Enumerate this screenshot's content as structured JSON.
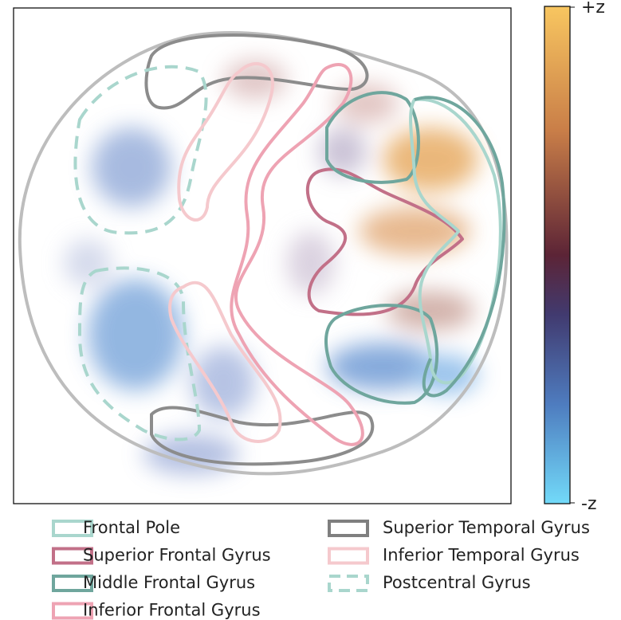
{
  "colorbar": {
    "top_label": "+z",
    "bottom_label": "-z"
  },
  "legend": [
    {
      "label": "Frontal Pole",
      "color": "#a9d6cd",
      "dashed": false
    },
    {
      "label": "Superior Frontal Gyrus",
      "color": "#c27088",
      "dashed": false
    },
    {
      "label": "Middle Frontal Gyrus",
      "color": "#6fa69d",
      "dashed": false
    },
    {
      "label": "Inferior Frontal Gyrus",
      "color": "#eea3b3",
      "dashed": false
    },
    {
      "label": "Superior Temporal Gyrus",
      "color": "#7f7f7f",
      "dashed": false
    },
    {
      "label": "Inferior Temporal Gyrus",
      "color": "#f5c9cd",
      "dashed": false
    },
    {
      "label": "Postcentral Gyrus",
      "color": "#a9d6cd",
      "dashed": true
    }
  ]
}
